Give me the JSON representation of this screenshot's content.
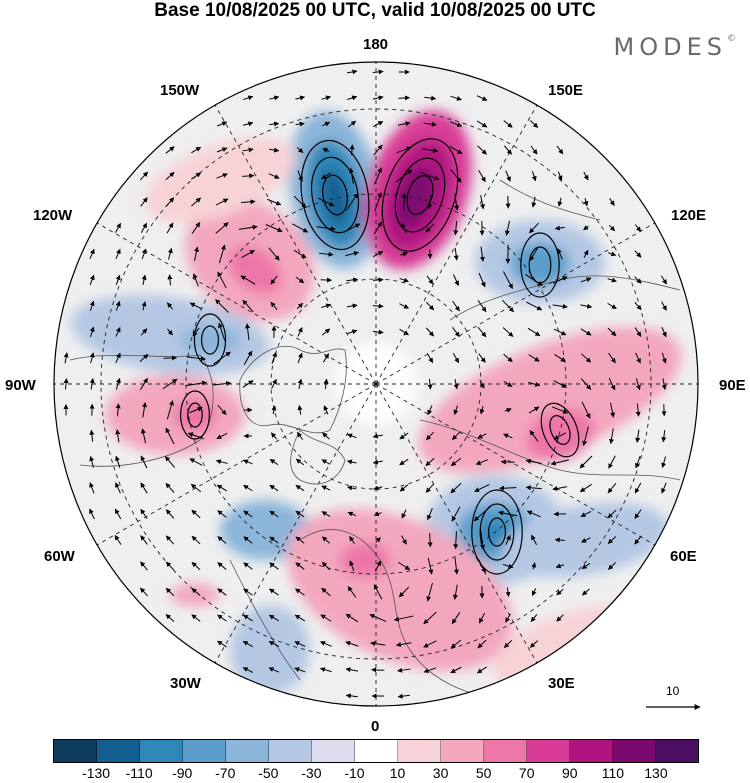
{
  "title": "Base 10/08/2025 00 UTC, valid 10/08/2025 00 UTC",
  "logo": {
    "text": "MODES",
    "mark": "©"
  },
  "map": {
    "projection": "north-polar-stereographic",
    "longitude_labels": {
      "top": "180",
      "bottom": "0",
      "left": "90W",
      "right": "90E",
      "upper_left_1": "150W",
      "upper_left_2": "120W",
      "upper_right_1": "150E",
      "upper_right_2": "120E",
      "lower_left_1": "60W",
      "lower_left_2": "30W",
      "lower_right_1": "60E",
      "lower_right_2": "30E"
    },
    "field": "geopotential height anomaly",
    "vectors": "wind vectors",
    "reference_vector": {
      "label": "10"
    }
  },
  "colorbar": {
    "colors": [
      "#0d3b5e",
      "#135f90",
      "#2f86b8",
      "#5c9ecb",
      "#8bb5d9",
      "#b4c8e4",
      "#dddcee",
      "#ffffff",
      "#f7d3d8",
      "#f3a7bd",
      "#ed76a9",
      "#d83c97",
      "#b0157f",
      "#7a0a6f",
      "#4c1063"
    ],
    "tick_labels": [
      "-130",
      "-110",
      "-90",
      "-70",
      "-50",
      "-30",
      "-10",
      "10",
      "30",
      "50",
      "70",
      "90",
      "110",
      "130"
    ]
  }
}
